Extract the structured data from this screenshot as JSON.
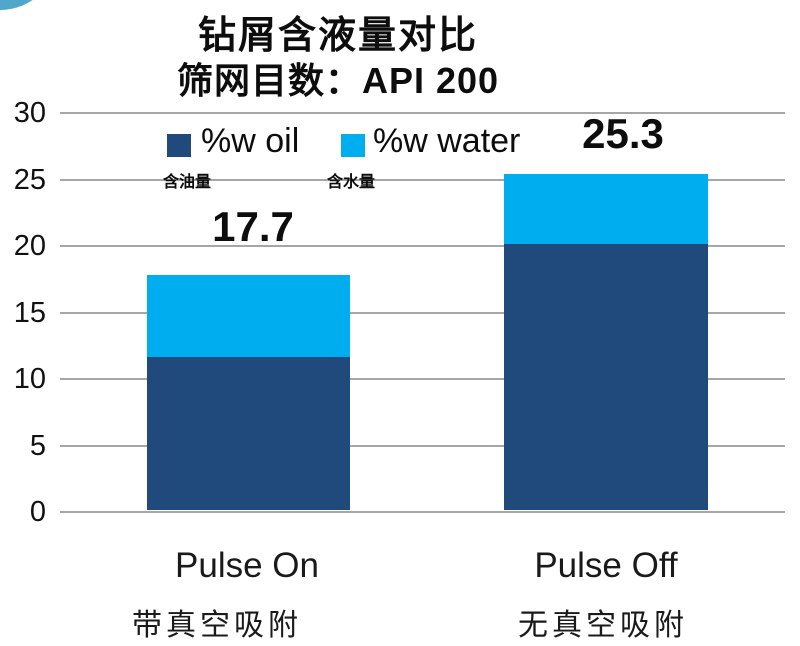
{
  "page": {
    "background": "#ffffff",
    "decor_circle_color": "#4fa7cc",
    "gridline_color": "#a6a6a6"
  },
  "title": {
    "line1": "钻屑含液量对比",
    "line2": "筛网目数：API 200"
  },
  "legend": {
    "items": [
      {
        "label": "%w oil",
        "sublabel": "含油量",
        "color": "#214a7c"
      },
      {
        "label": "%w water",
        "sublabel": "含水量",
        "color": "#00aeef"
      }
    ]
  },
  "chart_data": {
    "type": "bar",
    "stacked": true,
    "title": "钻屑含液量对比",
    "subtitle": "筛网目数：API 200",
    "categories": [
      "Pulse On",
      "Pulse Off"
    ],
    "category_sublabels": [
      "带真空吸附",
      "无真空吸附"
    ],
    "series": [
      {
        "name": "%w oil",
        "color": "#214a7c",
        "values": [
          11.5,
          20.0
        ]
      },
      {
        "name": "%w water",
        "color": "#00aeef",
        "values": [
          6.2,
          5.3
        ]
      }
    ],
    "totals": [
      17.7,
      25.3
    ],
    "total_labels": [
      "17.7",
      "25.3"
    ],
    "xlabel": "",
    "ylabel": "",
    "ylim": [
      0,
      30
    ],
    "yticks": [
      0,
      5,
      10,
      15,
      20,
      25,
      30
    ],
    "grid": true,
    "legend_position": "top-left-inside"
  }
}
